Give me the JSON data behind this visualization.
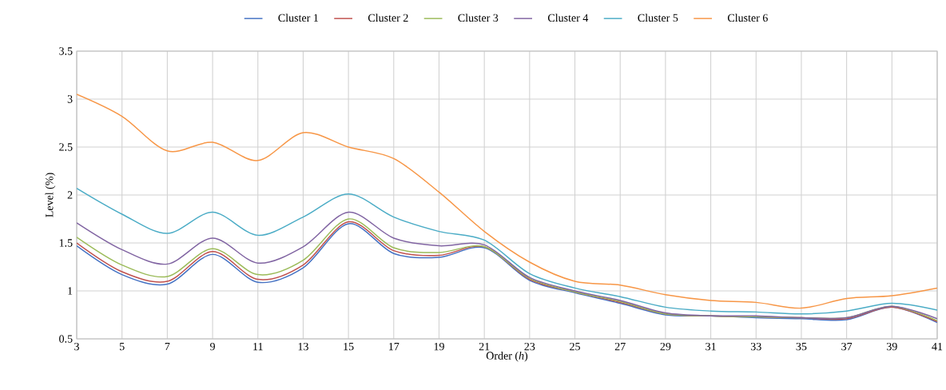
{
  "chart_data": {
    "type": "line",
    "xlabel": "Order (*h*)",
    "ylabel": "Level (%)",
    "x": [
      3,
      5,
      7,
      9,
      11,
      13,
      15,
      17,
      19,
      21,
      23,
      25,
      27,
      29,
      31,
      33,
      35,
      37,
      39,
      41
    ],
    "xlim": [
      3,
      41
    ],
    "xticks": [
      3,
      5,
      7,
      9,
      11,
      13,
      15,
      17,
      19,
      21,
      23,
      25,
      27,
      29,
      31,
      33,
      35,
      37,
      39,
      41
    ],
    "ylim": [
      0.5,
      3.5
    ],
    "yticks": [
      0.5,
      1,
      1.5,
      2,
      2.5,
      3,
      3.5
    ],
    "grid": true,
    "legend": "top",
    "marker": "none",
    "line_style": "solid",
    "series": [
      {
        "name": "Cluster 1",
        "color": "#4472c4",
        "values": [
          1.47,
          1.17,
          1.07,
          1.38,
          1.09,
          1.24,
          1.7,
          1.39,
          1.35,
          1.45,
          1.11,
          0.98,
          0.87,
          0.75,
          0.74,
          0.72,
          0.71,
          0.7,
          0.83,
          0.67
        ]
      },
      {
        "name": "Cluster 2",
        "color": "#c0504d",
        "values": [
          1.5,
          1.2,
          1.1,
          1.41,
          1.12,
          1.27,
          1.72,
          1.42,
          1.37,
          1.46,
          1.12,
          0.99,
          0.88,
          0.76,
          0.74,
          0.73,
          0.72,
          0.71,
          0.83,
          0.68
        ]
      },
      {
        "name": "Cluster 3",
        "color": "#9bbb59",
        "values": [
          1.56,
          1.27,
          1.15,
          1.44,
          1.17,
          1.32,
          1.75,
          1.45,
          1.4,
          1.46,
          1.13,
          0.99,
          0.89,
          0.76,
          0.74,
          0.73,
          0.72,
          0.72,
          0.84,
          0.69
        ]
      },
      {
        "name": "Cluster 4",
        "color": "#8064a2",
        "values": [
          1.71,
          1.43,
          1.28,
          1.55,
          1.29,
          1.46,
          1.82,
          1.55,
          1.47,
          1.48,
          1.14,
          1.0,
          0.9,
          0.77,
          0.74,
          0.74,
          0.72,
          0.72,
          0.84,
          0.71
        ]
      },
      {
        "name": "Cluster 5",
        "color": "#4bacc6",
        "values": [
          2.07,
          1.8,
          1.6,
          1.82,
          1.58,
          1.77,
          2.01,
          1.77,
          1.62,
          1.53,
          1.18,
          1.03,
          0.94,
          0.83,
          0.79,
          0.78,
          0.76,
          0.79,
          0.87,
          0.8
        ]
      },
      {
        "name": "Cluster 6",
        "color": "#f79646",
        "values": [
          3.05,
          2.82,
          2.46,
          2.55,
          2.36,
          2.65,
          2.5,
          2.38,
          2.03,
          1.62,
          1.3,
          1.1,
          1.06,
          0.96,
          0.9,
          0.88,
          0.82,
          0.92,
          0.95,
          1.03
        ]
      }
    ]
  }
}
